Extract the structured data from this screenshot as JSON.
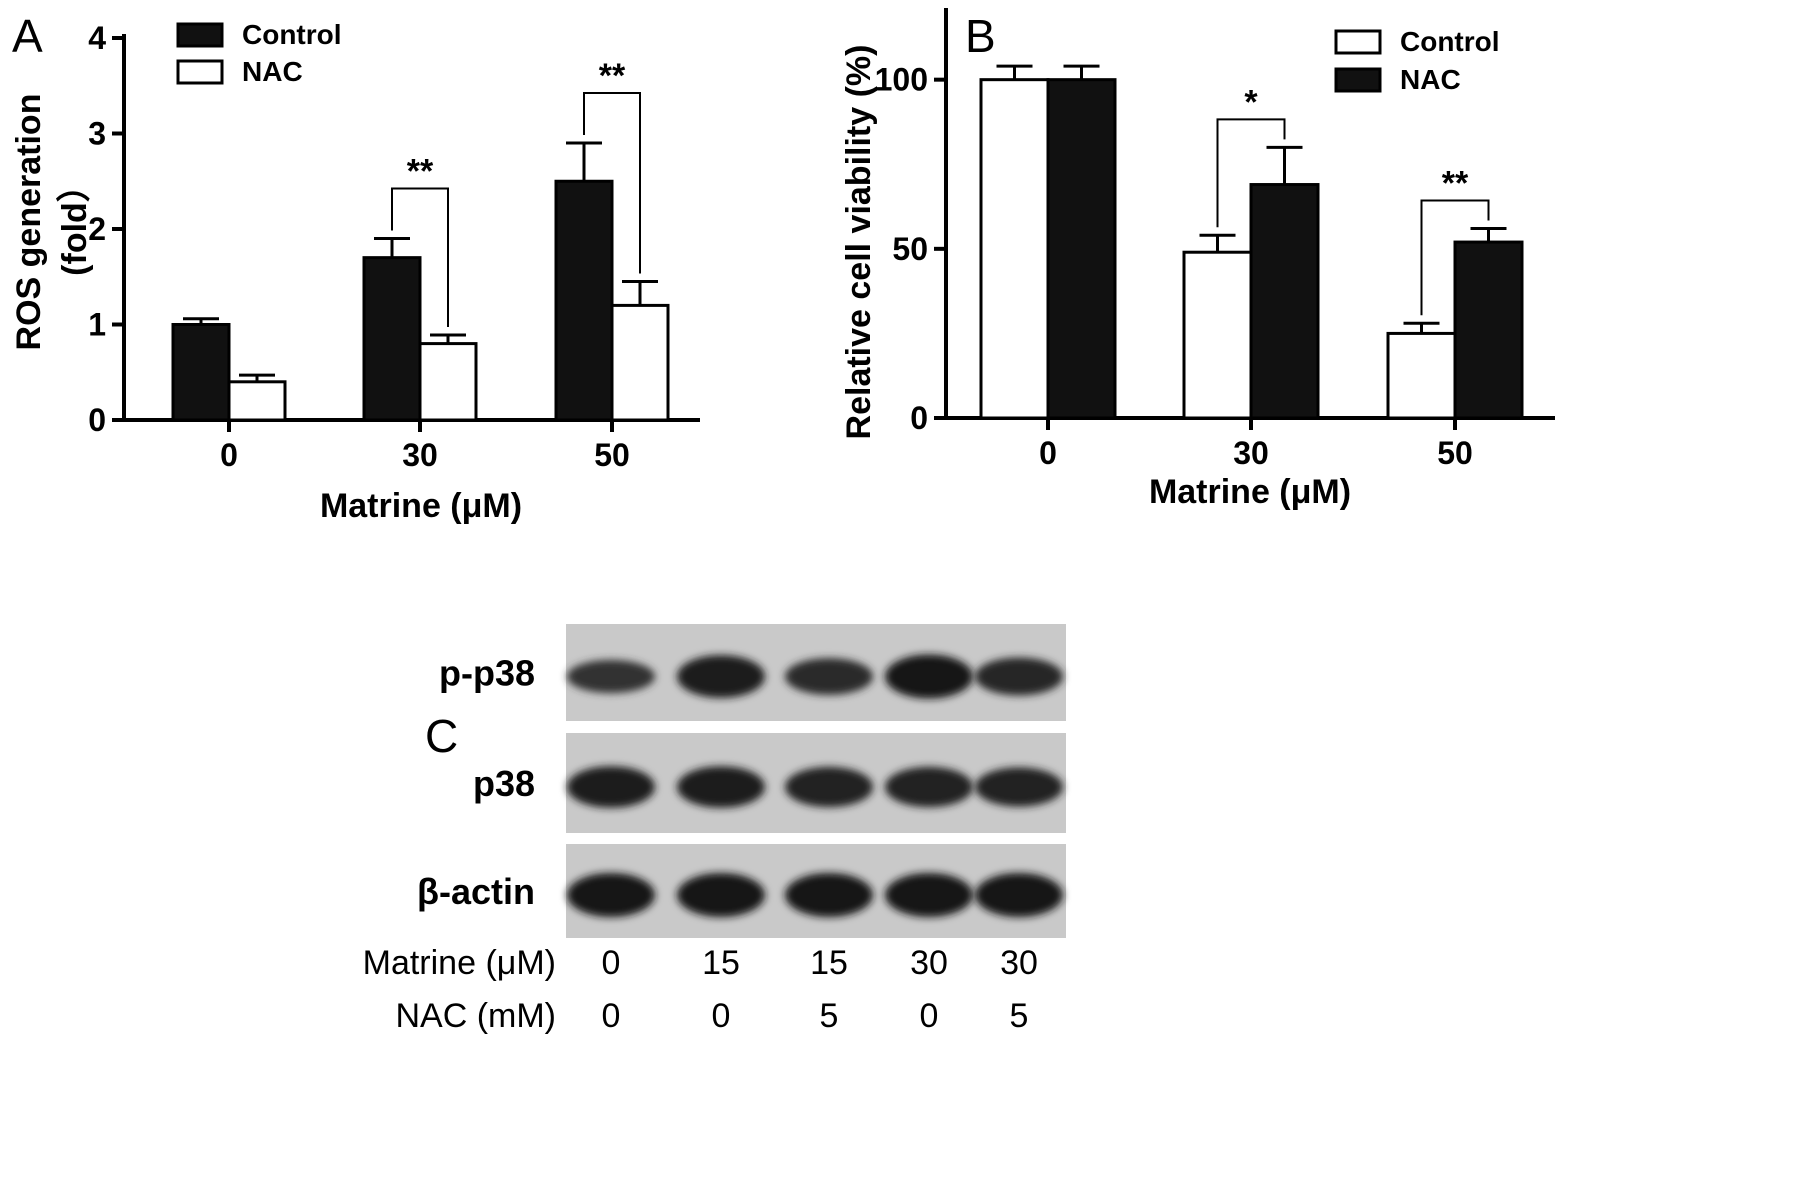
{
  "panels": {
    "a": "A",
    "b": "B",
    "c": "C"
  },
  "chart_data": [
    {
      "type": "bar",
      "panel": "A",
      "categories": [
        "0",
        "30",
        "50"
      ],
      "series": [
        {
          "name": "Control",
          "values": [
            1.0,
            1.7,
            2.5
          ],
          "errors": [
            0.06,
            0.2,
            0.4
          ],
          "color": "#111111"
        },
        {
          "name": "NAC",
          "values": [
            0.4,
            0.8,
            1.2
          ],
          "errors": [
            0.07,
            0.09,
            0.25
          ],
          "color": "#ffffff"
        }
      ],
      "xlabel": "Matrine (μM)",
      "ylabel_lines": [
        "ROS generation",
        "(fold）"
      ],
      "ylim": [
        0,
        4
      ],
      "yticks": [
        0,
        1,
        2,
        3,
        4
      ],
      "significance": [
        {
          "category": "30",
          "label": "**"
        },
        {
          "category": "50",
          "label": "**"
        }
      ],
      "legend": "top-left",
      "grid": false
    },
    {
      "type": "bar",
      "panel": "B",
      "categories": [
        "0",
        "30",
        "50"
      ],
      "series": [
        {
          "name": "Control",
          "values": [
            100,
            49,
            25
          ],
          "errors": [
            4,
            5,
            3
          ],
          "color": "#ffffff"
        },
        {
          "name": "NAC",
          "values": [
            100,
            69,
            52
          ],
          "errors": [
            4,
            11,
            4
          ],
          "color": "#111111"
        }
      ],
      "xlabel": "Matrine (μM)",
      "ylabel_lines": [
        "Relative cell viability (%)"
      ],
      "ylim": [
        0,
        120
      ],
      "yticks": [
        0,
        50,
        100
      ],
      "significance": [
        {
          "category": "30",
          "label": "*"
        },
        {
          "category": "50",
          "label": "**"
        }
      ],
      "legend": "top-right",
      "grid": false
    }
  ],
  "blot": {
    "rows": [
      {
        "label": "p-p38",
        "intensity": [
          0.55,
          0.95,
          0.7,
          1.0,
          0.75
        ]
      },
      {
        "label": "p38",
        "intensity": [
          0.9,
          0.9,
          0.85,
          0.85,
          0.8
        ]
      },
      {
        "label": "β-actin",
        "intensity": [
          1.0,
          1.0,
          1.0,
          1.0,
          1.0
        ]
      }
    ],
    "conditions": [
      {
        "label": "Matrine (μM)",
        "values": [
          "0",
          "15",
          "15",
          "30",
          "30"
        ]
      },
      {
        "label": "NAC (mM)",
        "values": [
          "0",
          "0",
          "5",
          "0",
          "5"
        ]
      }
    ]
  }
}
